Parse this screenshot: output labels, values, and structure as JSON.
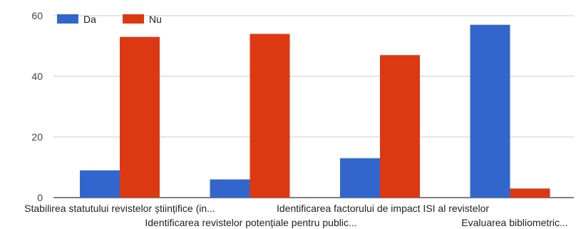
{
  "chart_data": {
    "type": "bar",
    "title": "",
    "xlabel": "",
    "ylabel": "",
    "categories": [
      "Stabilirea statutului revistelor științifice (in...",
      "Identificarea revistelor potențiale pentru public...",
      "Identificarea factorului de impact ISI al revistelor",
      "Evaluarea bibliometric..."
    ],
    "series": [
      {
        "name": "Da",
        "color": "#3366cc",
        "values": [
          9,
          6,
          13,
          57
        ]
      },
      {
        "name": "Nu",
        "color": "#dc3912",
        "values": [
          53,
          54,
          47,
          3
        ]
      }
    ],
    "ylim": [
      0,
      60
    ],
    "yticks": [
      "0",
      "20",
      "40",
      "60"
    ],
    "grid": true,
    "legend": "top-left"
  }
}
